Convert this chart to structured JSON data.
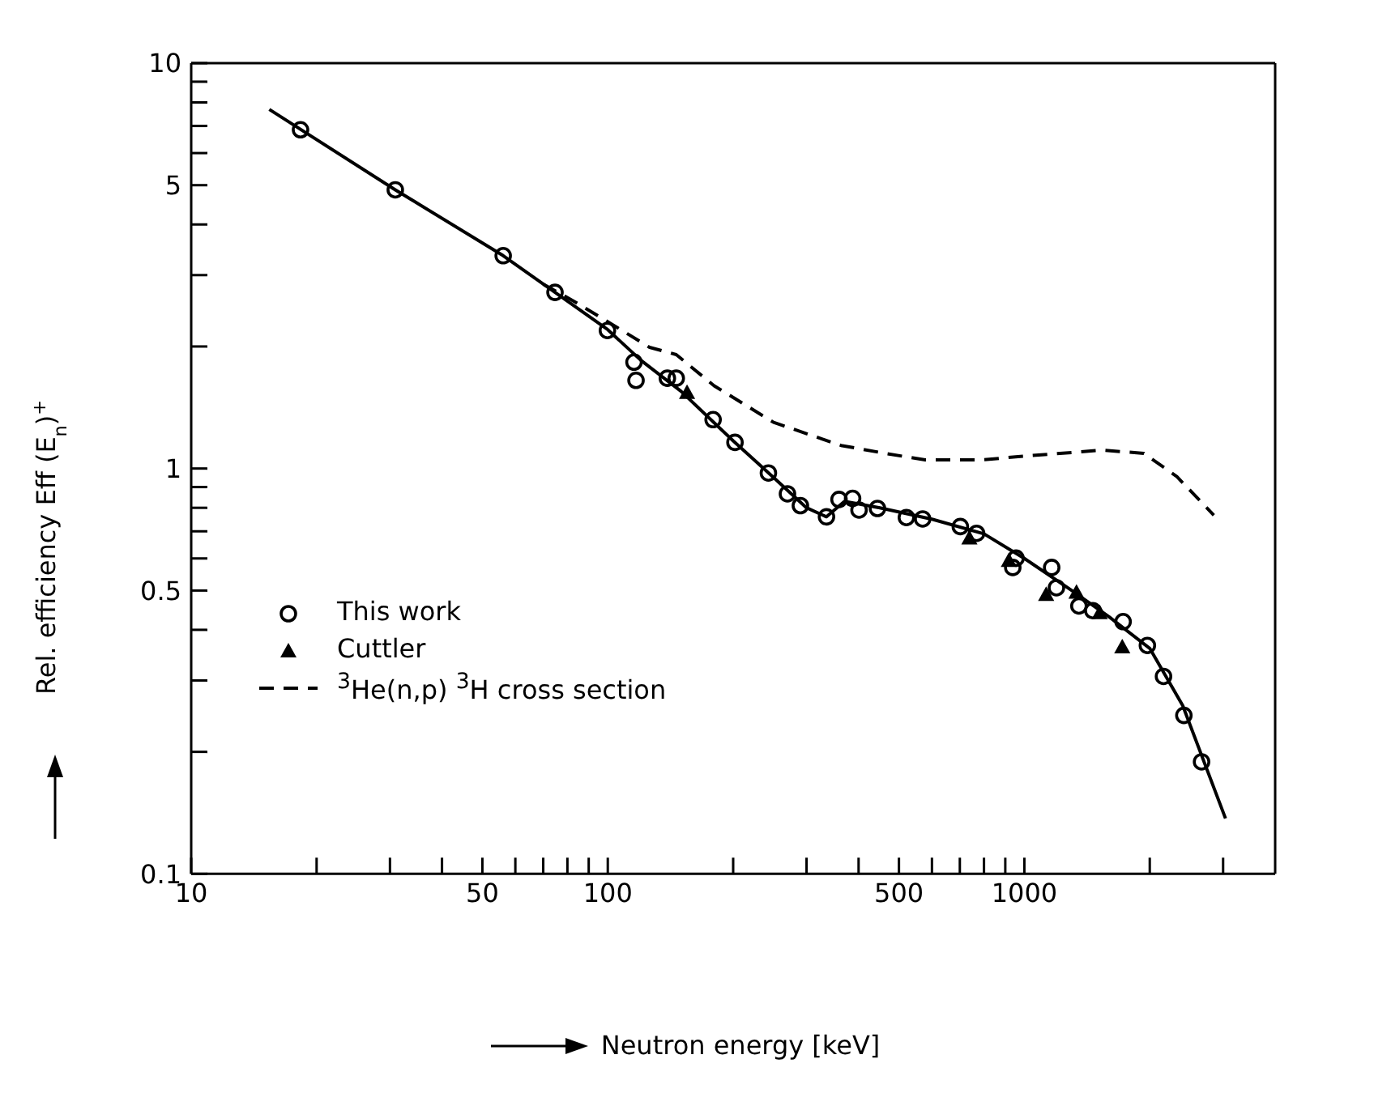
{
  "chart_data": {
    "type": "scatter",
    "xlabel": "Neutron energy [keV]",
    "ylabel": "Rel. efficiency Eff (E$_{n}$)$^{+}$",
    "log": "xy",
    "xlim": [
      10,
      4000
    ],
    "ylim": [
      0.1,
      10
    ],
    "xticks": [
      10,
      {
        "value": 20,
        "label": null
      },
      {
        "value": 30,
        "label": null
      },
      {
        "value": 40,
        "label": null
      },
      50,
      {
        "value": 60,
        "label": null
      },
      {
        "value": 70,
        "label": null
      },
      {
        "value": 80,
        "label": null
      },
      {
        "value": 90,
        "label": null
      },
      100,
      {
        "value": 200,
        "label": null
      },
      {
        "value": 300,
        "label": null
      },
      {
        "value": 400,
        "label": null
      },
      500,
      {
        "value": 600,
        "label": null
      },
      {
        "value": 700,
        "label": null
      },
      {
        "value": 800,
        "label": null
      },
      {
        "value": 900,
        "label": null
      },
      1000,
      {
        "value": 2000,
        "label": null
      },
      {
        "value": 3000,
        "label": null
      }
    ],
    "yticks": [
      0.1,
      {
        "value": 0.2,
        "label": null
      },
      {
        "value": 0.3,
        "label": null
      },
      {
        "value": 0.4,
        "label": null
      },
      0.5,
      {
        "value": 0.6,
        "label": null
      },
      {
        "value": 0.7,
        "label": null
      },
      {
        "value": 0.8,
        "label": null
      },
      {
        "value": 0.9,
        "label": null
      },
      1,
      {
        "value": 2,
        "label": null
      },
      {
        "value": 3,
        "label": null
      },
      {
        "value": 4,
        "label": null
      },
      5,
      {
        "value": 6,
        "label": null
      },
      {
        "value": 7,
        "label": null
      },
      {
        "value": 8,
        "label": null
      },
      {
        "value": 9,
        "label": null
      },
      10
    ],
    "legend": "left",
    "series": [
      {
        "name": "This work",
        "marker": "circle",
        "color": "#000000",
        "x": [
          18.3,
          30.9,
          56.1,
          74.7,
          99.8,
          115.6,
          116.9,
          139,
          146,
          179,
          202,
          243,
          270,
          290,
          335,
          359,
          387,
          401,
          444,
          521,
          570,
          702,
          768,
          938,
          955,
          1163,
          1194,
          1352,
          1460,
          1726,
          1974,
          2158,
          2415,
          2663
        ],
        "values": [
          6.85,
          4.87,
          3.35,
          2.72,
          2.19,
          1.83,
          1.65,
          1.67,
          1.67,
          1.32,
          1.16,
          0.975,
          0.866,
          0.81,
          0.76,
          0.839,
          0.844,
          0.79,
          0.797,
          0.757,
          0.751,
          0.719,
          0.692,
          0.57,
          0.601,
          0.57,
          0.508,
          0.458,
          0.446,
          0.419,
          0.366,
          0.307,
          0.246,
          0.189
        ]
      },
      {
        "name": "Cuttler",
        "marker": "triangle",
        "color": "#000000",
        "x": [
          155,
          738,
          918,
          1128,
          1334,
          1517,
          1718
        ],
        "values": [
          1.54,
          0.674,
          0.593,
          0.489,
          0.495,
          0.441,
          0.363
        ]
      },
      {
        "name": "$^{3}$He(n,p) $^{3}$H cross section",
        "type": "line",
        "line_style": "dashed",
        "marker": "none",
        "color": "#000000",
        "x": [
          70,
          83.8,
          103,
          126,
          146,
          180,
          250,
          363,
          463,
          578,
          790,
          966,
          1538,
          1936,
          2323,
          2850
        ],
        "values": [
          2.85,
          2.57,
          2.26,
          1.99,
          1.91,
          1.6,
          1.3,
          1.14,
          1.09,
          1.05,
          1.05,
          1.07,
          1.11,
          1.09,
          0.955,
          0.767
        ]
      },
      {
        "type": "line",
        "line_style": "solid",
        "marker": "none",
        "color": "#000000",
        "x": [
          15.4,
          30.9,
          56.1,
          100,
          120,
          150,
          200,
          250,
          300,
          335,
          370,
          450,
          600,
          800,
          1000,
          1300,
          1600,
          2000,
          2400,
          3040
        ],
        "values": [
          7.69,
          4.87,
          3.35,
          2.2,
          1.85,
          1.55,
          1.17,
          0.95,
          0.8,
          0.76,
          0.83,
          0.8,
          0.75,
          0.69,
          0.6,
          0.5,
          0.43,
          0.36,
          0.26,
          0.137
        ]
      }
    ]
  }
}
